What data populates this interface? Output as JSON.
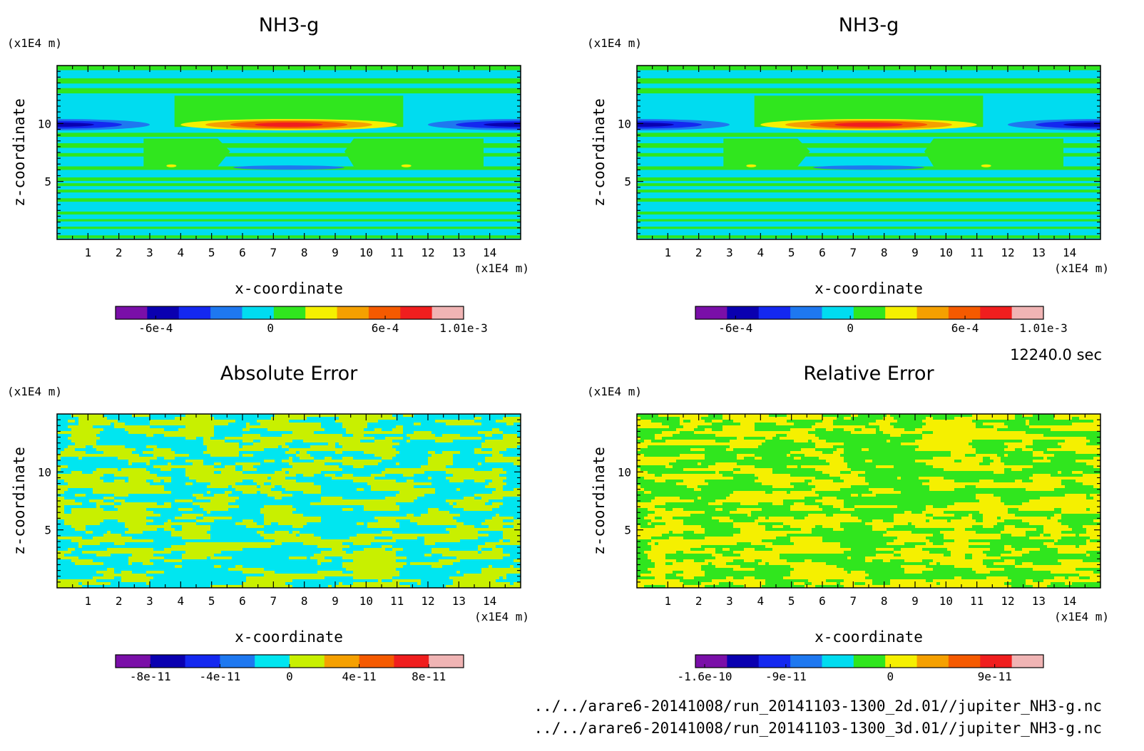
{
  "figure": {
    "time_label": "12240.0 sec",
    "file_1": "../../arare6-20141008/run_20141103-1300_2d.01//jupiter_NH3-g.nc",
    "file_2": "../../arare6-20141008/run_20141103-1300_3d.01//jupiter_NH3-g.nc"
  },
  "chart_data": [
    {
      "id": "nh3-2d",
      "type": "heatmap",
      "title": "NH3-g",
      "xlabel": "x-coordinate",
      "ylabel": "z-coordinate",
      "x_unit": "(x1E4 m)",
      "z_unit": "(x1E4 m)",
      "xlim": [
        0,
        15
      ],
      "ylim": [
        0,
        15
      ],
      "x_ticks": [
        "1",
        "2",
        "3",
        "4",
        "5",
        "6",
        "7",
        "8",
        "9",
        "10",
        "11",
        "12",
        "13",
        "14"
      ],
      "y_ticks": [
        "5",
        "10"
      ],
      "pattern": "nh3",
      "colorbar": {
        "colors": [
          "#7a0fa8",
          "#0a00b0",
          "#1428f0",
          "#1e78f0",
          "#00dcf0",
          "#30e61e",
          "#f5f000",
          "#f5a000",
          "#f55a00",
          "#f01e1e",
          "#f0b4b4"
        ],
        "levels": [
          -0.0009,
          -0.00075,
          -0.0006,
          -0.00045,
          -0.0003,
          -0.00015,
          0,
          0.00015,
          0.0003,
          0.00045,
          0.0006,
          0.00075,
          0.0009,
          0.00101
        ],
        "tick_labels": [
          "-6e-4",
          "0",
          "6e-4",
          "1.01e-3"
        ],
        "tick_values": [
          -0.0006,
          0,
          0.0006,
          0.00101
        ]
      }
    },
    {
      "id": "nh3-3d",
      "type": "heatmap",
      "title": "NH3-g",
      "xlabel": "x-coordinate",
      "ylabel": "z-coordinate",
      "x_unit": "(x1E4 m)",
      "z_unit": "(x1E4 m)",
      "xlim": [
        0,
        15
      ],
      "ylim": [
        0,
        15
      ],
      "x_ticks": [
        "1",
        "2",
        "3",
        "4",
        "5",
        "6",
        "7",
        "8",
        "9",
        "10",
        "11",
        "12",
        "13",
        "14"
      ],
      "y_ticks": [
        "5",
        "10"
      ],
      "pattern": "nh3",
      "colorbar": {
        "colors": [
          "#7a0fa8",
          "#0a00b0",
          "#1428f0",
          "#1e78f0",
          "#00dcf0",
          "#30e61e",
          "#f5f000",
          "#f5a000",
          "#f55a00",
          "#f01e1e",
          "#f0b4b4"
        ],
        "tick_labels": [
          "-6e-4",
          "0",
          "6e-4",
          "1.01e-3"
        ],
        "tick_values": [
          -0.0006,
          0,
          0.0006,
          0.00101
        ]
      }
    },
    {
      "id": "abs-err",
      "type": "heatmap",
      "title": "Absolute Error",
      "xlabel": "x-coordinate",
      "ylabel": "z-coordinate",
      "x_unit": "(x1E4 m)",
      "z_unit": "(x1E4 m)",
      "xlim": [
        0,
        15
      ],
      "ylim": [
        0,
        15
      ],
      "x_ticks": [
        "1",
        "2",
        "3",
        "4",
        "5",
        "6",
        "7",
        "8",
        "9",
        "10",
        "11",
        "12",
        "13",
        "14"
      ],
      "y_ticks": [
        "5",
        "10"
      ],
      "pattern": "noise2",
      "noise_colors": [
        "#00e6f0",
        "#c8f000"
      ],
      "colorbar": {
        "colors": [
          "#7a0fa8",
          "#0a00b0",
          "#1428f0",
          "#1e78f0",
          "#00e6f0",
          "#c8f000",
          "#f5a000",
          "#f55a00",
          "#f01e1e",
          "#f0b4b4"
        ],
        "tick_labels": [
          "-8e-11",
          "-4e-11",
          "0",
          "4e-11",
          "8e-11"
        ],
        "tick_values": [
          -8e-11,
          -4e-11,
          0,
          4e-11,
          8e-11
        ]
      }
    },
    {
      "id": "rel-err",
      "type": "heatmap",
      "title": "Relative Error",
      "xlabel": "x-coordinate",
      "ylabel": "z-coordinate",
      "x_unit": "(x1E4 m)",
      "z_unit": "(x1E4 m)",
      "xlim": [
        0,
        15
      ],
      "ylim": [
        0,
        15
      ],
      "x_ticks": [
        "1",
        "2",
        "3",
        "4",
        "5",
        "6",
        "7",
        "8",
        "9",
        "10",
        "11",
        "12",
        "13",
        "14"
      ],
      "y_ticks": [
        "5",
        "10"
      ],
      "pattern": "noise2",
      "noise_colors": [
        "#30e61e",
        "#f5f000"
      ],
      "colorbar": {
        "colors": [
          "#7a0fa8",
          "#0a00b0",
          "#1428f0",
          "#1e78f0",
          "#00dcf0",
          "#30e61e",
          "#f5f000",
          "#f5a000",
          "#f55a00",
          "#f01e1e",
          "#f0b4b4"
        ],
        "tick_labels": [
          "-1.6e-10",
          "-9e-11",
          "0",
          "9e-11"
        ],
        "tick_values": [
          -1.6e-10,
          -9e-11,
          0,
          9e-11
        ]
      }
    }
  ]
}
